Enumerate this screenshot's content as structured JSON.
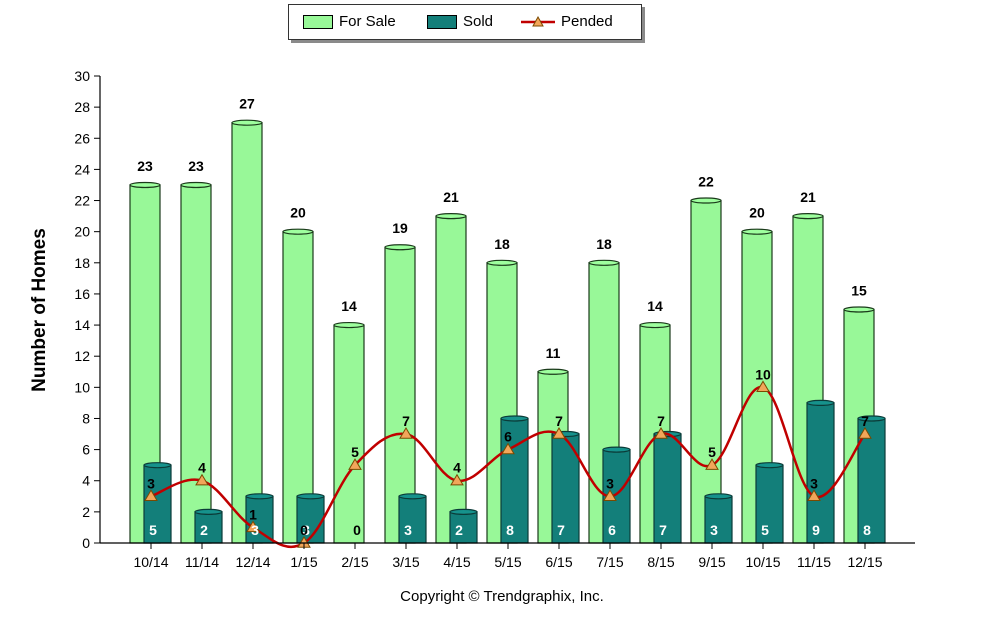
{
  "chart_data": {
    "type": "bar",
    "categories": [
      "10/14",
      "11/14",
      "12/14",
      "1/15",
      "2/15",
      "3/15",
      "4/15",
      "5/15",
      "6/15",
      "7/15",
      "8/15",
      "9/15",
      "10/15",
      "11/15",
      "12/15"
    ],
    "series": [
      {
        "name": "For Sale",
        "type": "bar",
        "color": "#98f898",
        "values": [
          23,
          23,
          27,
          20,
          14,
          19,
          21,
          18,
          11,
          18,
          14,
          22,
          20,
          21,
          15
        ]
      },
      {
        "name": "Sold",
        "type": "bar",
        "color": "#137f7a",
        "values": [
          5,
          2,
          3,
          3,
          0,
          3,
          2,
          8,
          7,
          6,
          7,
          3,
          5,
          9,
          8
        ]
      },
      {
        "name": "Pended",
        "type": "line",
        "color": "#c00000",
        "marker_color": "#f2a65a",
        "values": [
          3,
          4,
          1,
          0,
          5,
          7,
          4,
          6,
          7,
          3,
          7,
          5,
          10,
          3,
          7
        ]
      }
    ],
    "ylabel": "Number of Homes",
    "ylim": [
      0,
      30
    ],
    "yticks": [
      0,
      2,
      4,
      6,
      8,
      10,
      12,
      14,
      16,
      18,
      20,
      22,
      24,
      26,
      28,
      30
    ],
    "legend_position": "top-center",
    "grid": false
  },
  "copyright": "Copyright © Trendgraphix, Inc."
}
